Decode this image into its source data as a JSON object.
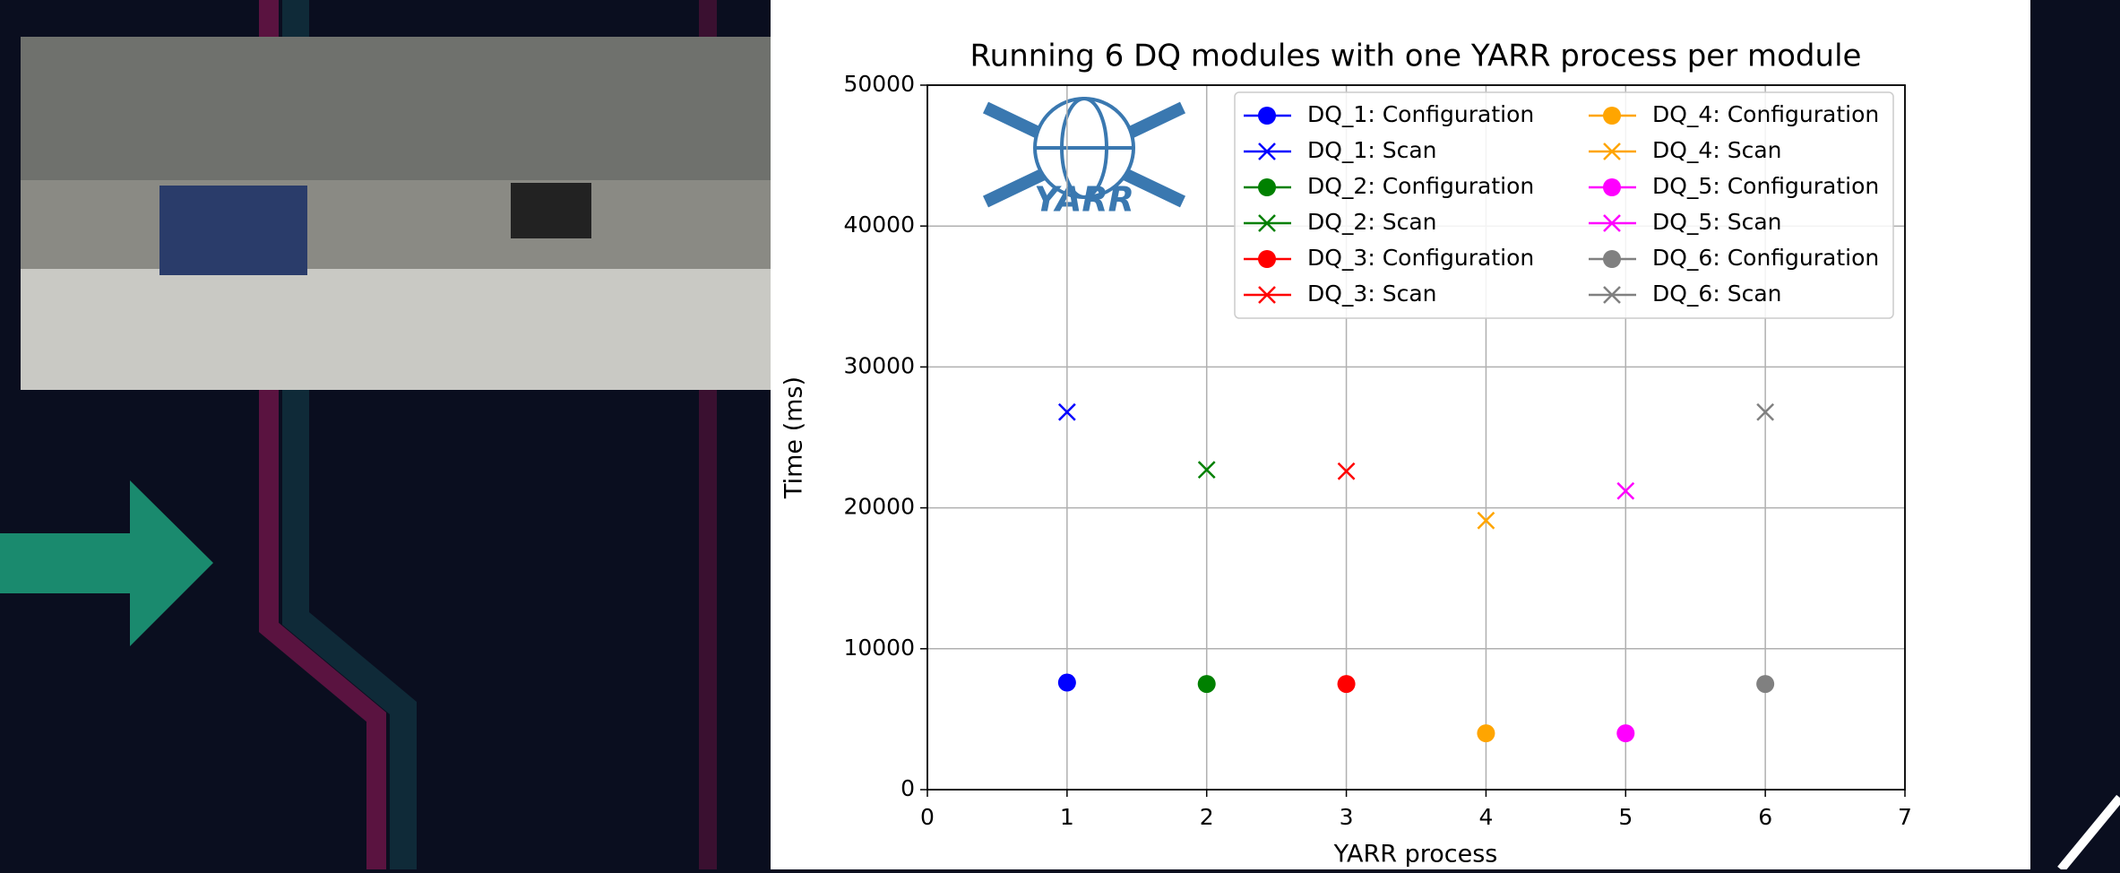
{
  "chart_data": {
    "type": "scatter",
    "title": "Running 6 DQ modules with one YARR process per module",
    "x_label": "YARR process",
    "y_label": "Time (ms)",
    "logo_text": "YARR",
    "xlim": [
      0,
      7
    ],
    "xticks": [
      0,
      1,
      2,
      3,
      4,
      5,
      6,
      7
    ],
    "ylim": [
      0,
      50000
    ],
    "yticks": [
      0,
      10000,
      20000,
      30000,
      40000,
      50000
    ],
    "grid": true,
    "legend": "upper right",
    "series": [
      {
        "name": "DQ_1: Configuration",
        "color": "#0000ff",
        "marker": "o",
        "x": [
          1
        ],
        "values": [
          7600
        ]
      },
      {
        "name": "DQ_1: Scan",
        "color": "#0000ff",
        "marker": "x",
        "x": [
          1
        ],
        "values": [
          26800
        ]
      },
      {
        "name": "DQ_2: Configuration",
        "color": "#008000",
        "marker": "o",
        "x": [
          2
        ],
        "values": [
          7500
        ]
      },
      {
        "name": "DQ_2: Scan",
        "color": "#008000",
        "marker": "x",
        "x": [
          2
        ],
        "values": [
          22700
        ]
      },
      {
        "name": "DQ_3: Configuration",
        "color": "#ff0000",
        "marker": "o",
        "x": [
          3
        ],
        "values": [
          7500
        ]
      },
      {
        "name": "DQ_3: Scan",
        "color": "#ff0000",
        "marker": "x",
        "x": [
          3
        ],
        "values": [
          22600
        ]
      },
      {
        "name": "DQ_4: Configuration",
        "color": "#ffa500",
        "marker": "o",
        "x": [
          4
        ],
        "values": [
          4000
        ]
      },
      {
        "name": "DQ_4: Scan",
        "color": "#ffa500",
        "marker": "x",
        "x": [
          4
        ],
        "values": [
          19100
        ]
      },
      {
        "name": "DQ_5: Configuration",
        "color": "#ff00ff",
        "marker": "o",
        "x": [
          5
        ],
        "values": [
          4000
        ]
      },
      {
        "name": "DQ_5: Scan",
        "color": "#ff00ff",
        "marker": "x",
        "x": [
          5
        ],
        "values": [
          21200
        ]
      },
      {
        "name": "DQ_6: Configuration",
        "color": "#808080",
        "marker": "o",
        "x": [
          6
        ],
        "values": [
          7500
        ]
      },
      {
        "name": "DQ_6: Scan",
        "color": "#808080",
        "marker": "x",
        "x": [
          6
        ],
        "values": [
          26800
        ]
      }
    ]
  }
}
